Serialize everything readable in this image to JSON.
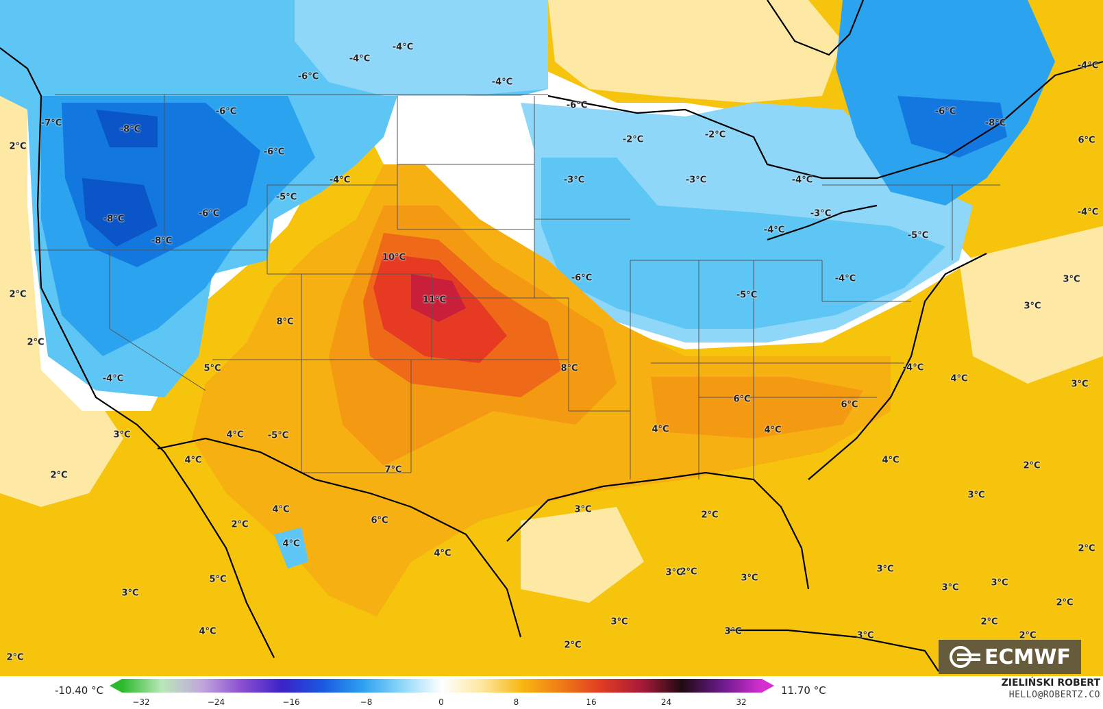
{
  "map": {
    "colors": {
      "ocean_warm": "#f6c40c",
      "light_warm": "#fde9a3",
      "warm2": "#f7b012",
      "warm4": "#f49a12",
      "warm8": "#ee6a18",
      "hot": "#e63b22",
      "hottest": "#c91f3a",
      "neutral": "#ffffff",
      "cold_light": "#c9ecfb",
      "cold_mid": "#5ec6f5",
      "cold": "#2ca3ee",
      "cold_deep": "#1377e0",
      "cold_deepest": "#0a55c8",
      "border": "#000000",
      "state_line": "#555555"
    },
    "labels": [
      {
        "text": "-4°C"
      },
      {
        "text": "-4°C"
      },
      {
        "text": "-6°C"
      },
      {
        "text": "-4°C"
      },
      {
        "text": "-6°C"
      },
      {
        "text": "-7°C"
      },
      {
        "text": "-8°C"
      },
      {
        "text": "-6°C"
      },
      {
        "text": "2°C"
      },
      {
        "text": "-4°C"
      },
      {
        "text": "-5°C"
      },
      {
        "text": "-6°C"
      },
      {
        "text": "-8°C"
      },
      {
        "text": "-8°C"
      },
      {
        "text": "10°C"
      },
      {
        "text": "2°C"
      },
      {
        "text": "11°C"
      },
      {
        "text": "8°C"
      },
      {
        "text": "2°C"
      },
      {
        "text": "5°C"
      },
      {
        "text": "-4°C"
      },
      {
        "text": "3°C"
      },
      {
        "text": "4°C"
      },
      {
        "text": "-5°C"
      },
      {
        "text": "2°C"
      },
      {
        "text": "4°C"
      },
      {
        "text": "7°C"
      },
      {
        "text": "4°C"
      },
      {
        "text": "2°C"
      },
      {
        "text": "6°C"
      },
      {
        "text": "4°C"
      },
      {
        "text": "4°C"
      },
      {
        "text": "5°C"
      },
      {
        "text": "3°C"
      },
      {
        "text": "4°C"
      },
      {
        "text": "2°C"
      },
      {
        "text": "-6°C"
      },
      {
        "text": "-2°C"
      },
      {
        "text": "-2°C"
      },
      {
        "text": "-3°C"
      },
      {
        "text": "-3°C"
      },
      {
        "text": "-4°C"
      },
      {
        "text": "-3°C"
      },
      {
        "text": "-4°C"
      },
      {
        "text": "-6°C"
      },
      {
        "text": "-5°C"
      },
      {
        "text": "-5°C"
      },
      {
        "text": "-4°C"
      },
      {
        "text": "8°C"
      },
      {
        "text": "-4°C"
      },
      {
        "text": "6°C"
      },
      {
        "text": "6°C"
      },
      {
        "text": "4°C"
      },
      {
        "text": "4°C"
      },
      {
        "text": "3°C"
      },
      {
        "text": "2°C"
      },
      {
        "text": "2°C"
      },
      {
        "text": "3°C"
      },
      {
        "text": "3°C"
      },
      {
        "text": "3°C"
      },
      {
        "text": "3°C"
      },
      {
        "text": "2°C"
      },
      {
        "text": "-6°C"
      },
      {
        "text": "-8°C"
      },
      {
        "text": "-4°C"
      },
      {
        "text": "6°C"
      },
      {
        "text": "-4°C"
      },
      {
        "text": "3°C"
      },
      {
        "text": "3°C"
      },
      {
        "text": "4°C"
      },
      {
        "text": "3°C"
      },
      {
        "text": "4°C"
      },
      {
        "text": "2°C"
      },
      {
        "text": "3°C"
      },
      {
        "text": "2°C"
      },
      {
        "text": "3°C"
      },
      {
        "text": "3°C"
      },
      {
        "text": "3°C"
      },
      {
        "text": "2°C"
      },
      {
        "text": "2°C"
      },
      {
        "text": "3°C"
      },
      {
        "text": "2°C"
      }
    ]
  },
  "logo": {
    "text": "ECMWF"
  },
  "legend": {
    "min_label": "-10.40 °C",
    "max_label": "11.70 °C",
    "ticks": [
      "−32",
      "−24",
      "−16",
      "−8",
      "0",
      "8",
      "16",
      "24",
      "32"
    ],
    "colors": [
      "#2cb92c",
      "#b9e8b9",
      "#c2a6dd",
      "#8b4fd0",
      "#3b22c8",
      "#1a58e0",
      "#2c9ff0",
      "#8ed7f8",
      "#ffffff",
      "#fde7a0",
      "#f8b712",
      "#ef7a16",
      "#e03b22",
      "#a81a3a",
      "#200a12",
      "#6a1a8a",
      "#d52fd2"
    ]
  },
  "credit": {
    "name": "ZIELIŃSKI ROBERT",
    "email": "HELLO@ROBERTZ.CO"
  }
}
